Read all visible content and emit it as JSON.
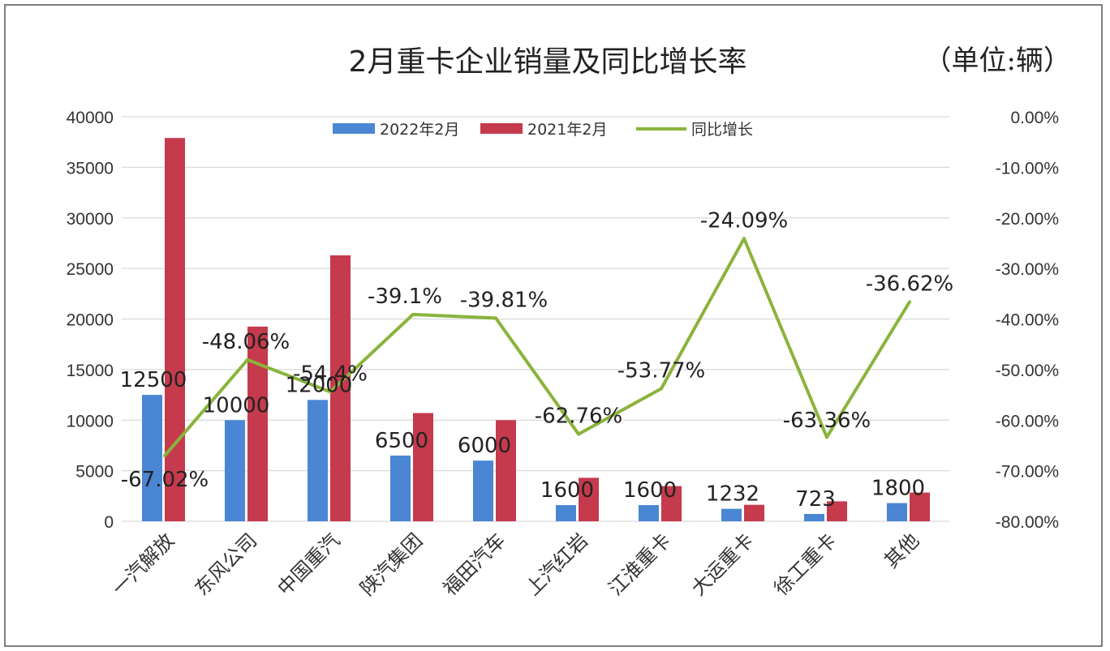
{
  "chart_data": {
    "type": "bar",
    "title": "2月重卡企业销量及同比增长率",
    "unit_note": "（单位:辆）",
    "categories": [
      "一汽解放",
      "东风公司",
      "中国重汽",
      "陕汽集团",
      "福田汽车",
      "上汽红岩",
      "江淮重卡",
      "大运重卡",
      "徐工重卡",
      "其他"
    ],
    "series": [
      {
        "name": "2022年2月",
        "type": "bar",
        "axis": "left",
        "values": [
          12500,
          10000,
          12000,
          6500,
          6000,
          1600,
          1600,
          1232,
          723,
          1800
        ],
        "labels": [
          "12500",
          "10000",
          "12000",
          "6500",
          "6000",
          "1600",
          "1600",
          "1232",
          "723",
          "1800"
        ]
      },
      {
        "name": "2021年2月",
        "type": "bar",
        "axis": "left",
        "values": [
          37900,
          19250,
          26300,
          10700,
          10000,
          4300,
          3480,
          1630,
          1975,
          2840
        ]
      },
      {
        "name": "同比增长",
        "type": "line",
        "axis": "right",
        "values": [
          -67.02,
          -48.06,
          -54.4,
          -39.1,
          -39.81,
          -62.76,
          -53.77,
          -24.09,
          -63.36,
          -36.62
        ],
        "labels": [
          "-67.02%",
          "-48.06%",
          "-54.4%",
          "-39.1%",
          "-39.81%",
          "-62.76%",
          "-53.77%",
          "-24.09%",
          "-63.36%",
          "-36.62%"
        ]
      }
    ],
    "y_left": {
      "min": 0,
      "max": 40000,
      "ticks": [
        "0",
        "5000",
        "10000",
        "15000",
        "20000",
        "25000",
        "30000",
        "35000",
        "40000"
      ]
    },
    "y_right": {
      "min": -80,
      "max": 0,
      "ticks": [
        "-80.00%",
        "-70.00%",
        "-60.00%",
        "-50.00%",
        "-40.00%",
        "-30.00%",
        "-20.00%",
        "-10.00%",
        "0.00%"
      ]
    },
    "grid": true,
    "legend_position": "top-center",
    "colors": {
      "bar2022": "#4a86d4",
      "bar2021": "#c53a4c",
      "line": "#8ab43c",
      "grid": "#d9d9d9"
    }
  }
}
